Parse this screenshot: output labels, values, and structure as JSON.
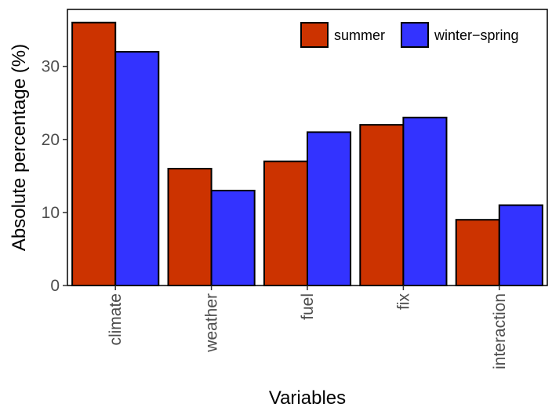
{
  "chart_data": {
    "type": "bar",
    "title": "",
    "xlabel": "Variables",
    "ylabel": "Absolute percentage (%)",
    "categories": [
      "climate",
      "weather",
      "fuel",
      "fix",
      "interaction"
    ],
    "series": [
      {
        "name": "summer",
        "values": [
          36,
          16,
          17,
          22,
          9
        ],
        "color": "#cc3300"
      },
      {
        "name": "winter−spring",
        "values": [
          32,
          13,
          21,
          23,
          11
        ],
        "color": "#3333ff"
      }
    ],
    "ylim": [
      0,
      37.8
    ],
    "yticks": [
      0,
      10,
      20,
      30
    ],
    "grid": false,
    "legend_position": "top-right",
    "x_tick_rotation": "vertical"
  }
}
